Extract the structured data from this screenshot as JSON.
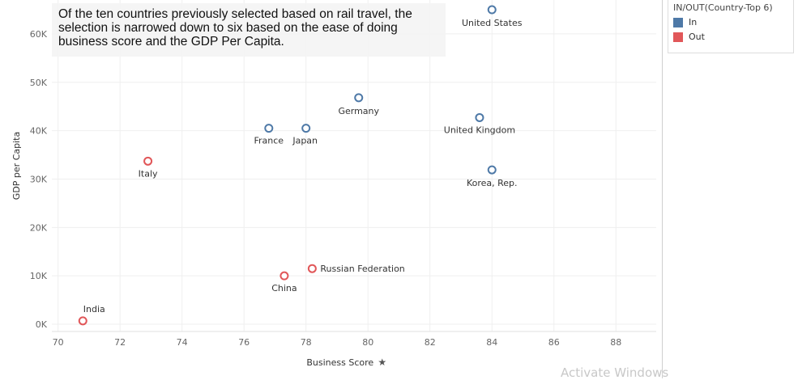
{
  "annotation": "Of the ten countries previously selected based on rail travel, the selection is narrowed down to six based on the ease of doing business score and the GDP Per Capita.",
  "legend": {
    "title": "IN/OUT(Country-Top 6)",
    "items": [
      {
        "label": "In",
        "color": "#4e79a7"
      },
      {
        "label": "Out",
        "color": "#e15759"
      }
    ]
  },
  "watermark": "Activate Windows",
  "chart_data": {
    "type": "scatter",
    "xlabel": "Business Score",
    "ylabel": "GDP per Capita",
    "xlim": [
      69.8,
      89.3
    ],
    "ylim": [
      -1500,
      67000
    ],
    "x_ticks": [
      70,
      72,
      74,
      76,
      78,
      80,
      82,
      84,
      86,
      88
    ],
    "y_ticks": [
      0,
      10000,
      20000,
      30000,
      40000,
      50000,
      60000
    ],
    "y_tick_labels": [
      "0K",
      "10K",
      "20K",
      "30K",
      "40K",
      "50K",
      "60K"
    ],
    "grid": true,
    "points": [
      {
        "label": "United States",
        "x": 84.0,
        "y": 65000,
        "group": "In"
      },
      {
        "label": "Germany",
        "x": 79.7,
        "y": 46800,
        "group": "In"
      },
      {
        "label": "United Kingdom",
        "x": 83.6,
        "y": 42700,
        "group": "In"
      },
      {
        "label": "France",
        "x": 76.8,
        "y": 40500,
        "group": "In"
      },
      {
        "label": "Japan",
        "x": 78.0,
        "y": 40500,
        "group": "In"
      },
      {
        "label": "Korea, Rep.",
        "x": 84.0,
        "y": 31900,
        "group": "In"
      },
      {
        "label": "Italy",
        "x": 72.9,
        "y": 33700,
        "group": "Out"
      },
      {
        "label": "Russian Federation",
        "x": 78.2,
        "y": 11500,
        "group": "Out"
      },
      {
        "label": "China",
        "x": 77.3,
        "y": 10000,
        "group": "Out"
      },
      {
        "label": "India",
        "x": 70.8,
        "y": 700,
        "group": "Out"
      }
    ]
  }
}
